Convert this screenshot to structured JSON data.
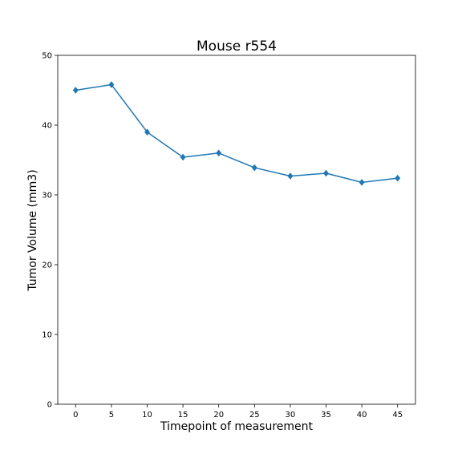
{
  "chart_data": {
    "type": "line",
    "title": "Mouse r554",
    "xlabel": "Timepoint of measurement",
    "ylabel": "Tumor Volume (mm3)",
    "x": [
      0,
      5,
      10,
      15,
      20,
      25,
      30,
      35,
      40,
      45
    ],
    "series": [
      {
        "values": [
          45.0,
          45.8,
          39.0,
          35.4,
          36.0,
          33.9,
          32.7,
          33.1,
          31.8,
          32.4
        ],
        "color": "#1f77b4",
        "marker": "diamond"
      }
    ],
    "xticks": [
      0,
      5,
      10,
      15,
      20,
      25,
      30,
      35,
      40,
      45
    ],
    "yticks": [
      0,
      10,
      20,
      30,
      40,
      50
    ],
    "xlim": [
      -2.5,
      47.5
    ],
    "ylim": [
      0,
      50
    ],
    "grid": false,
    "legend": "none"
  }
}
